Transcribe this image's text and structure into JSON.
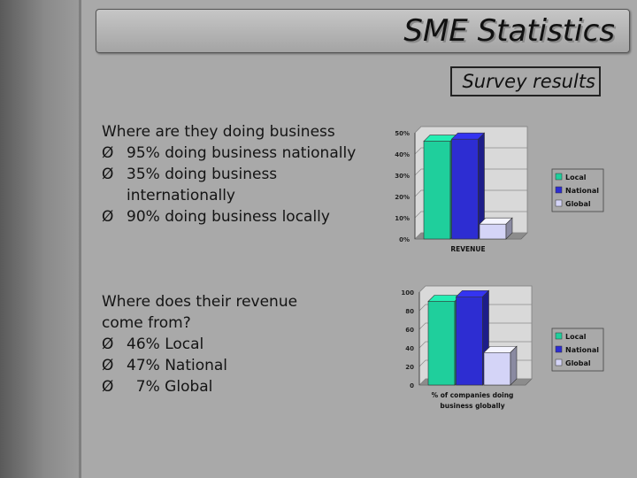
{
  "slide": {
    "title": "SME Statistics",
    "subtitle": "Survey results"
  },
  "section1": {
    "question": "Where are they doing business",
    "bullets": [
      "95% doing business nationally",
      "35% doing business internationally",
      "90% doing business locally"
    ]
  },
  "section2": {
    "question": "Where does their revenue come from?",
    "bullets": [
      "46% Local",
      "47% National",
      "  7% Global"
    ]
  },
  "bullet_glyph": "Ø",
  "colors": {
    "background": "#a9a9a9",
    "local": "#1fcf9c",
    "national": "#2d2dd2",
    "global": "#d4d4f7"
  },
  "chart_data": [
    {
      "type": "bar",
      "categories": [
        "Local",
        "National",
        "Global"
      ],
      "values": [
        46,
        47,
        7
      ],
      "ylim": [
        0,
        50
      ],
      "yticks": [
        "0%",
        "10%",
        "20%",
        "30%",
        "40%",
        "50%"
      ],
      "xlabel": "REVENUE",
      "legend": [
        "Local",
        "National",
        "Global"
      ],
      "legend_position": "right",
      "grid": true
    },
    {
      "type": "bar",
      "categories": [
        "Local",
        "National",
        "Global"
      ],
      "values": [
        90,
        95,
        35
      ],
      "ylim": [
        0,
        100
      ],
      "yticks": [
        "0",
        "20",
        "40",
        "60",
        "80",
        "100"
      ],
      "xlabel": "% of companies doing business globally",
      "legend": [
        "Local",
        "National",
        "Global"
      ],
      "legend_position": "right",
      "grid": true
    }
  ]
}
